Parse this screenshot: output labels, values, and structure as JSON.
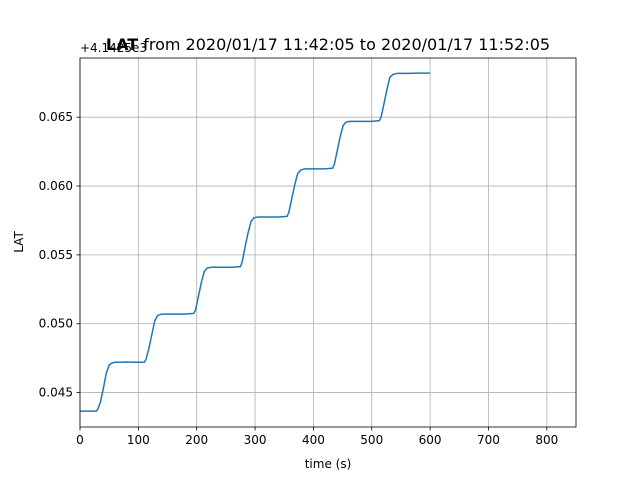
{
  "chart_data": {
    "type": "line",
    "title_bold": "LAT",
    "title_rest": " from 2020/01/17 11:42:05 to 2020/01/17 11:52:05",
    "offset_label": "+4.1425e3",
    "xlabel": "time (s)",
    "ylabel": "LAT",
    "xlim": [
      0,
      850
    ],
    "ylim": [
      0.0425,
      0.0693
    ],
    "x_ticks": [
      0,
      100,
      200,
      300,
      400,
      500,
      600,
      700,
      800
    ],
    "y_ticks": [
      0.045,
      0.05,
      0.055,
      0.06,
      0.065
    ],
    "y_tick_labels": [
      "0.045",
      "0.050",
      "0.055",
      "0.060",
      "0.065"
    ],
    "grid": true,
    "colors": {
      "line": "#1f77b4",
      "grid": "#b0b0b0",
      "axes": "#000000"
    },
    "series": [
      {
        "x": [
          0,
          28,
          30,
          35,
          40,
          45,
          50,
          55,
          60,
          70,
          80,
          90,
          100,
          110,
          113,
          118,
          123,
          128,
          133,
          140,
          150,
          160,
          180,
          195,
          198,
          203,
          208,
          213,
          218,
          225,
          240,
          260,
          275,
          278,
          283,
          288,
          293,
          298,
          305,
          320,
          340,
          355,
          358,
          363,
          368,
          373,
          378,
          385,
          400,
          420,
          433,
          436,
          441,
          446,
          451,
          456,
          463,
          480,
          500,
          513,
          516,
          521,
          526,
          531,
          536,
          543,
          560,
          580,
          600
        ],
        "y": [
          0.04365,
          0.04365,
          0.04375,
          0.0443,
          0.0453,
          0.0464,
          0.047,
          0.04715,
          0.0472,
          0.0472,
          0.04722,
          0.0472,
          0.0472,
          0.0472,
          0.0474,
          0.0482,
          0.0492,
          0.0502,
          0.0506,
          0.0507,
          0.0507,
          0.0507,
          0.0507,
          0.05075,
          0.051,
          0.052,
          0.053,
          0.0538,
          0.05405,
          0.0541,
          0.0541,
          0.0541,
          0.05415,
          0.0545,
          0.0556,
          0.0566,
          0.0574,
          0.0577,
          0.05775,
          0.05775,
          0.05775,
          0.0578,
          0.0581,
          0.0591,
          0.0601,
          0.0609,
          0.06115,
          0.06125,
          0.06125,
          0.06125,
          0.0613,
          0.0616,
          0.0626,
          0.0636,
          0.0644,
          0.06465,
          0.0647,
          0.0647,
          0.0647,
          0.06475,
          0.065,
          0.066,
          0.067,
          0.0679,
          0.0681,
          0.06818,
          0.06818,
          0.0682,
          0.0682
        ]
      }
    ]
  }
}
